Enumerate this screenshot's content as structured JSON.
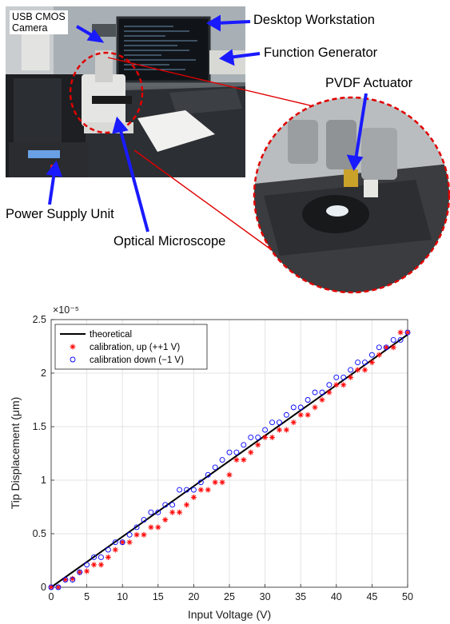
{
  "figure": {
    "labels": {
      "camera_line1": "USB CMOS",
      "camera_line2": "Camera",
      "workstation": "Desktop Workstation",
      "function_generator": "Function Generator",
      "actuator": "PVDF Actuator",
      "power_supply": "Power Supply Unit",
      "microscope": "Optical Microscope"
    },
    "colors": {
      "arrow": "#1a1aff",
      "callout_line": "#e00000"
    }
  },
  "chart_data": {
    "type": "scatter",
    "title": "",
    "xlabel": "Input Voltage (V)",
    "ylabel": "Tip Displacement (μm)",
    "exponent_label": "×10⁻⁵",
    "xlim": [
      0,
      50
    ],
    "ylim": [
      0,
      2.5e-05
    ],
    "x_ticks": [
      0,
      5,
      10,
      15,
      20,
      25,
      30,
      35,
      40,
      45,
      50
    ],
    "y_ticks": [
      0,
      0.5,
      1,
      1.5,
      2,
      2.5
    ],
    "grid": true,
    "legend_position": "top-left",
    "series": [
      {
        "name": "theoretical",
        "style": "line",
        "color": "#000000",
        "x": [
          0,
          50
        ],
        "y": [
          0,
          2.36e-05
        ]
      },
      {
        "name": "calibration, up (++1 V)",
        "style": "star",
        "color": "#ff0000",
        "x": [
          0,
          1,
          2,
          3,
          4,
          5,
          6,
          7,
          8,
          9,
          10,
          11,
          12,
          13,
          14,
          15,
          16,
          17,
          18,
          19,
          20,
          21,
          22,
          23,
          24,
          25,
          26,
          27,
          28,
          29,
          30,
          31,
          32,
          33,
          34,
          35,
          36,
          37,
          38,
          39,
          40,
          41,
          42,
          43,
          44,
          45,
          46,
          47,
          48,
          49,
          50
        ],
        "y": [
          0,
          0,
          7e-07,
          8e-07,
          1.4e-06,
          1.5e-06,
          2.1e-06,
          2.1e-06,
          2.8e-06,
          3.5e-06,
          4.2e-06,
          4.2e-06,
          4.9e-06,
          4.9e-06,
          5.6e-06,
          5.6e-06,
          6.3e-06,
          7e-06,
          7e-06,
          7.7e-06,
          8.4e-06,
          9.1e-06,
          9.1e-06,
          9.8e-06,
          9.8e-06,
          1.05e-05,
          1.19e-05,
          1.19e-05,
          1.26e-05,
          1.33e-05,
          1.4e-05,
          1.4e-05,
          1.47e-05,
          1.47e-05,
          1.54e-05,
          1.61e-05,
          1.61e-05,
          1.68e-05,
          1.75e-05,
          1.82e-05,
          1.89e-05,
          1.89e-05,
          1.96e-05,
          2.03e-05,
          2.03e-05,
          2.1e-05,
          2.17e-05,
          2.24e-05,
          2.24e-05,
          2.38e-05,
          2.38e-05
        ]
      },
      {
        "name": "calibration down (−1 V)",
        "style": "circle",
        "color": "#0000ff",
        "x": [
          0,
          1,
          2,
          3,
          4,
          5,
          6,
          7,
          8,
          9,
          10,
          11,
          12,
          13,
          14,
          15,
          16,
          17,
          18,
          19,
          20,
          21,
          22,
          23,
          24,
          25,
          26,
          27,
          28,
          29,
          30,
          31,
          32,
          33,
          34,
          35,
          36,
          37,
          38,
          39,
          40,
          41,
          42,
          43,
          44,
          45,
          46,
          47,
          48,
          49,
          50
        ],
        "y": [
          0,
          0,
          7e-07,
          7e-07,
          1.4e-06,
          2.1e-06,
          2.8e-06,
          2.8e-06,
          3.5e-06,
          4.2e-06,
          4.2e-06,
          4.9e-06,
          5.6e-06,
          6.3e-06,
          7e-06,
          7e-06,
          7.7e-06,
          7.7e-06,
          9.1e-06,
          9.1e-06,
          9.1e-06,
          9.8e-06,
          1.05e-05,
          1.12e-05,
          1.19e-05,
          1.26e-05,
          1.26e-05,
          1.33e-05,
          1.4e-05,
          1.4e-05,
          1.47e-05,
          1.54e-05,
          1.54e-05,
          1.61e-05,
          1.68e-05,
          1.68e-05,
          1.75e-05,
          1.82e-05,
          1.82e-05,
          1.89e-05,
          1.96e-05,
          1.96e-05,
          2.03e-05,
          2.1e-05,
          2.1e-05,
          2.17e-05,
          2.24e-05,
          2.24e-05,
          2.31e-05,
          2.31e-05,
          2.38e-05
        ]
      }
    ]
  }
}
